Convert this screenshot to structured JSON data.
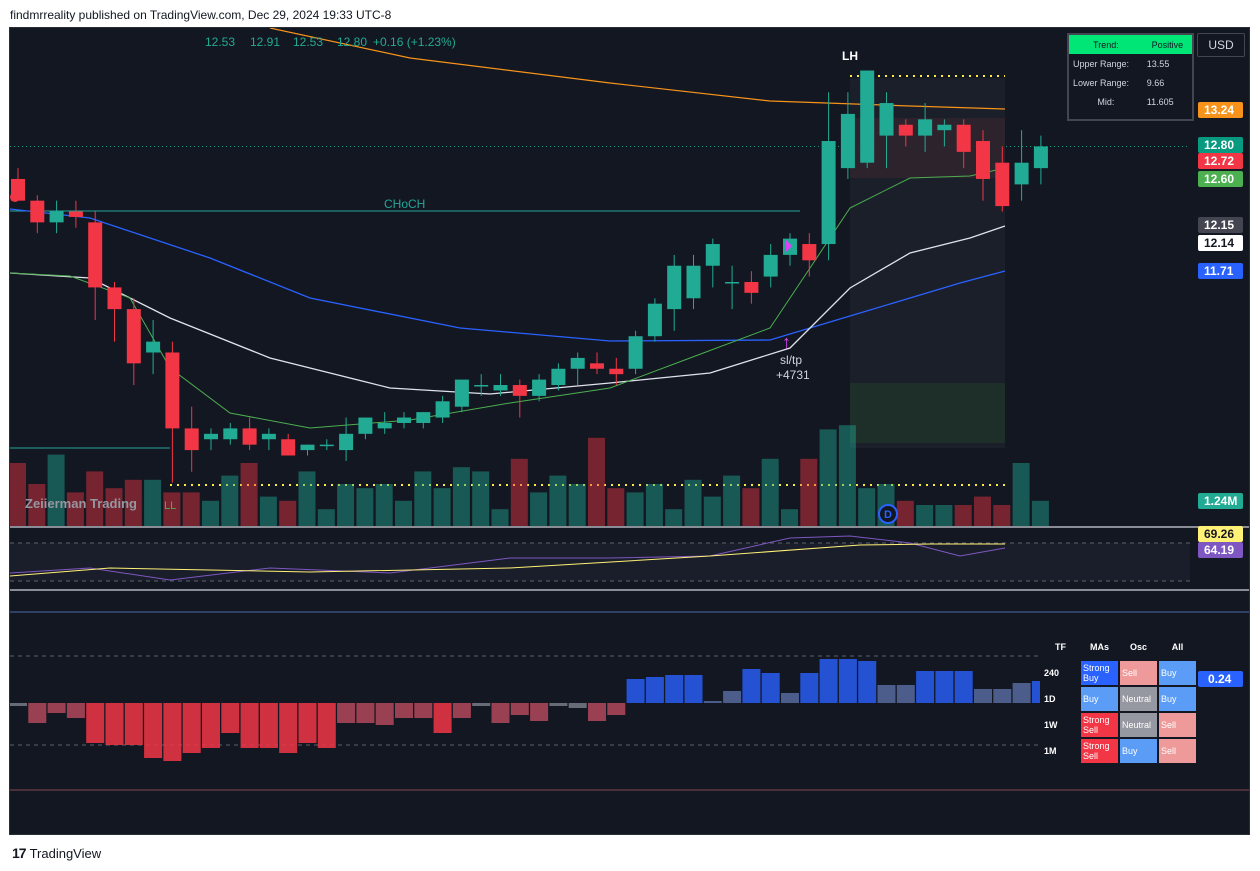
{
  "header": {
    "text": "findmrreality published on TradingView.com, Dec 29, 2024 19:33 UTC-8"
  },
  "ohlc": {
    "open": "12.53",
    "high": "12.91",
    "low": "12.53",
    "close": "12.80",
    "change": "+0.16 (+1.23%)"
  },
  "currency_button": "USD",
  "watermark": "Zeiierman Trading",
  "labels": {
    "choch": "CHoCH",
    "lh": "LH",
    "ll": "LL",
    "sltp": "sl/tp",
    "sltp_value": "+4731",
    "dividend": "D"
  },
  "trend_box": {
    "trend_label": "Trend:",
    "trend_value": "Positive",
    "upper_label": "Upper Range:",
    "upper_value": "13.55",
    "lower_label": "Lower Range:",
    "lower_value": "9.66",
    "mid_label": "Mid:",
    "mid_value": "11.605"
  },
  "price_labels": [
    {
      "value": "13.24",
      "color": "#f7931a"
    },
    {
      "value": "12.80",
      "color": "#089981"
    },
    {
      "value": "12.72",
      "color": "#f23645"
    },
    {
      "value": "12.60",
      "color": "#4caf50"
    },
    {
      "value": "12.15",
      "color": "#434651"
    },
    {
      "value": "12.14",
      "color": "#ffffff"
    },
    {
      "value": "11.71",
      "color": "#2962ff"
    },
    {
      "value": "1.24M",
      "color": "#22ab94"
    }
  ],
  "rsi_labels": [
    {
      "value": "69.26",
      "color": "#fff176"
    },
    {
      "value": "64.19",
      "color": "#7e57c2"
    }
  ],
  "osc_label": {
    "value": "0.24",
    "color": "#2962ff"
  },
  "signal_table": {
    "headers": [
      "TF",
      "MAs",
      "Osc",
      "All"
    ],
    "rows": [
      {
        "tf": "240",
        "mas": "Strong Buy",
        "osc": "Sell",
        "all": "Buy"
      },
      {
        "tf": "1D",
        "mas": "Buy",
        "osc": "Neutral",
        "all": "Buy"
      },
      {
        "tf": "1W",
        "mas": "Strong Sell",
        "osc": "Neutral",
        "all": "Sell"
      },
      {
        "tf": "1M",
        "mas": "Strong Sell",
        "osc": "Buy",
        "all": "Sell"
      }
    ]
  },
  "signal_colors": {
    "Strong Buy": "#2962ff",
    "Buy": "#5b9cf6",
    "Sell": "#ef9a9a",
    "Neutral": "#9598a1",
    "Strong Sell": "#f23645"
  },
  "footer": {
    "brand": "TradingView"
  },
  "chart_data": {
    "type": "candlestick",
    "ylim": [
      9.3,
      13.8
    ],
    "candles": [
      [
        12.5,
        12.6,
        12.3,
        12.3
      ],
      [
        12.3,
        12.35,
        12.0,
        12.1
      ],
      [
        12.1,
        12.3,
        12.0,
        12.2
      ],
      [
        12.2,
        12.3,
        12.05,
        12.15
      ],
      [
        12.1,
        12.2,
        11.2,
        11.5
      ],
      [
        11.5,
        11.55,
        11.0,
        11.3
      ],
      [
        11.3,
        11.4,
        10.6,
        10.8
      ],
      [
        10.9,
        11.2,
        10.7,
        11.0
      ],
      [
        10.9,
        11.0,
        9.7,
        10.2
      ],
      [
        10.2,
        10.4,
        9.8,
        10.0
      ],
      [
        10.1,
        10.2,
        10.0,
        10.15
      ],
      [
        10.1,
        10.25,
        10.05,
        10.2
      ],
      [
        10.2,
        10.3,
        10.0,
        10.05
      ],
      [
        10.1,
        10.2,
        10.0,
        10.15
      ],
      [
        10.1,
        10.15,
        9.95,
        9.95
      ],
      [
        10.0,
        10.05,
        9.95,
        10.05
      ],
      [
        10.05,
        10.1,
        10.0,
        10.05
      ],
      [
        10.0,
        10.3,
        9.9,
        10.15
      ],
      [
        10.15,
        10.3,
        10.1,
        10.3
      ],
      [
        10.2,
        10.35,
        10.15,
        10.25
      ],
      [
        10.25,
        10.35,
        10.2,
        10.3
      ],
      [
        10.25,
        10.35,
        10.2,
        10.35
      ],
      [
        10.3,
        10.5,
        10.25,
        10.45
      ],
      [
        10.4,
        10.65,
        10.35,
        10.65
      ],
      [
        10.6,
        10.7,
        10.5,
        10.6
      ],
      [
        10.55,
        10.7,
        10.5,
        10.6
      ],
      [
        10.6,
        10.65,
        10.3,
        10.5
      ],
      [
        10.5,
        10.7,
        10.45,
        10.65
      ],
      [
        10.6,
        10.8,
        10.55,
        10.75
      ],
      [
        10.75,
        10.9,
        10.6,
        10.85
      ],
      [
        10.8,
        10.9,
        10.7,
        10.75
      ],
      [
        10.75,
        10.85,
        10.6,
        10.7
      ],
      [
        10.75,
        11.1,
        10.7,
        11.05
      ],
      [
        11.05,
        11.4,
        11.0,
        11.35
      ],
      [
        11.3,
        11.8,
        11.1,
        11.7
      ],
      [
        11.4,
        11.8,
        11.3,
        11.7
      ],
      [
        11.7,
        11.95,
        11.5,
        11.9
      ],
      [
        11.55,
        11.7,
        11.3,
        11.55
      ],
      [
        11.55,
        11.65,
        11.35,
        11.45
      ],
      [
        11.6,
        11.9,
        11.5,
        11.8
      ],
      [
        11.8,
        12.0,
        11.7,
        11.95
      ],
      [
        11.9,
        12.0,
        11.6,
        11.75
      ],
      [
        11.9,
        13.3,
        11.75,
        12.85
      ],
      [
        12.6,
        13.3,
        12.5,
        13.1
      ],
      [
        12.65,
        13.5,
        12.6,
        13.5
      ],
      [
        12.9,
        13.3,
        12.6,
        13.2
      ],
      [
        13.0,
        13.05,
        12.8,
        12.9
      ],
      [
        12.9,
        13.2,
        12.75,
        13.05
      ],
      [
        12.95,
        13.05,
        12.8,
        13.0
      ],
      [
        13.0,
        13.05,
        12.6,
        12.75
      ],
      [
        12.85,
        12.95,
        12.3,
        12.5
      ],
      [
        12.65,
        12.8,
        12.2,
        12.25
      ],
      [
        12.45,
        12.95,
        12.3,
        12.65
      ],
      [
        12.6,
        12.9,
        12.45,
        12.8
      ]
    ],
    "volume": [
      1.5,
      1.0,
      1.7,
      0.8,
      1.3,
      0.9,
      1.1,
      1.1,
      0.8,
      0.8,
      0.6,
      1.2,
      1.5,
      0.7,
      0.6,
      1.3,
      0.4,
      1.0,
      0.9,
      1.0,
      0.6,
      1.3,
      0.9,
      1.4,
      1.3,
      0.4,
      1.6,
      0.8,
      1.2,
      1.0,
      2.1,
      0.9,
      0.8,
      1.0,
      0.4,
      1.1,
      0.7,
      1.2,
      0.9,
      1.6,
      0.4,
      1.6,
      2.3,
      2.4,
      0.9,
      1.0,
      0.6,
      0.5,
      0.5,
      0.5,
      0.7,
      0.5,
      1.5,
      0.6
    ]
  }
}
